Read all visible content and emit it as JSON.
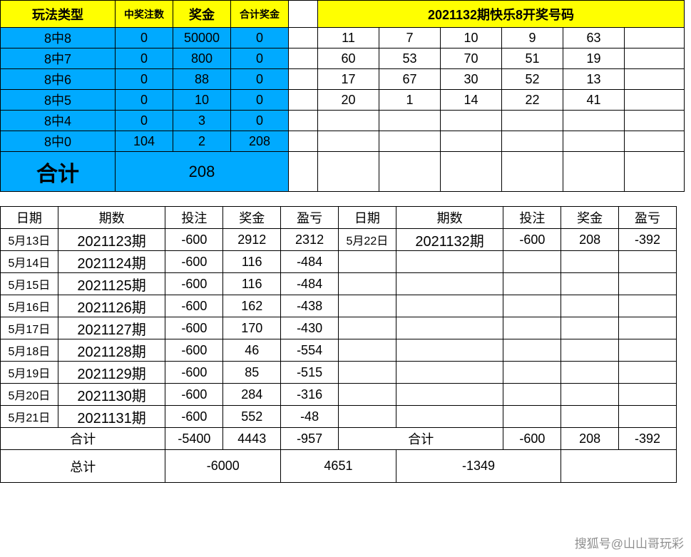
{
  "prize_table": {
    "headers": [
      "玩法类型",
      "中奖注数",
      "奖金",
      "合计奖金"
    ],
    "rows": [
      [
        "8中8",
        "0",
        "50000",
        "0"
      ],
      [
        "8中7",
        "0",
        "800",
        "0"
      ],
      [
        "8中6",
        "0",
        "88",
        "0"
      ],
      [
        "8中5",
        "0",
        "10",
        "0"
      ],
      [
        "8中4",
        "0",
        "3",
        "0"
      ],
      [
        "8中0",
        "104",
        "2",
        "208"
      ]
    ],
    "total_label": "合计",
    "total_value": "208"
  },
  "draw": {
    "title": "2021132期快乐8开奖号码",
    "grid": [
      [
        "11",
        "7",
        "10",
        "9",
        "63",
        ""
      ],
      [
        "60",
        "53",
        "70",
        "51",
        "19",
        ""
      ],
      [
        "17",
        "67",
        "30",
        "52",
        "13",
        ""
      ],
      [
        "20",
        "1",
        "14",
        "22",
        "41",
        ""
      ],
      [
        "",
        "",
        "",
        "",
        "",
        ""
      ],
      [
        "",
        "",
        "",
        "",
        "",
        ""
      ]
    ],
    "big_row": [
      "",
      "",
      "",
      "",
      "",
      ""
    ]
  },
  "daily": {
    "headers": [
      "日期",
      "期数",
      "投注",
      "奖金",
      "盈亏",
      "日期",
      "期数",
      "投注",
      "奖金",
      "盈亏"
    ],
    "rows": [
      [
        "5月13日",
        "2021123期",
        "-600",
        "2912",
        "2312",
        "5月22日",
        "2021132期",
        "-600",
        "208",
        "-392"
      ],
      [
        "5月14日",
        "2021124期",
        "-600",
        "116",
        "-484",
        "",
        "",
        "",
        "",
        ""
      ],
      [
        "5月15日",
        "2021125期",
        "-600",
        "116",
        "-484",
        "",
        "",
        "",
        "",
        ""
      ],
      [
        "5月16日",
        "2021126期",
        "-600",
        "162",
        "-438",
        "",
        "",
        "",
        "",
        ""
      ],
      [
        "5月17日",
        "2021127期",
        "-600",
        "170",
        "-430",
        "",
        "",
        "",
        "",
        ""
      ],
      [
        "5月18日",
        "2021128期",
        "-600",
        "46",
        "-554",
        "",
        "",
        "",
        "",
        ""
      ],
      [
        "5月19日",
        "2021129期",
        "-600",
        "85",
        "-515",
        "",
        "",
        "",
        "",
        ""
      ],
      [
        "5月20日",
        "2021130期",
        "-600",
        "284",
        "-316",
        "",
        "",
        "",
        "",
        ""
      ],
      [
        "5月21日",
        "2021131期",
        "-600",
        "552",
        "-48",
        "",
        "",
        "",
        "",
        ""
      ]
    ],
    "subtotal_left": {
      "label": "合计",
      "bet": "-5400",
      "prize": "4443",
      "pl": "-957"
    },
    "subtotal_right": {
      "label": "合计",
      "bet": "-600",
      "prize": "208",
      "pl": "-392"
    },
    "grand": {
      "label": "总计",
      "bet": "-6000",
      "prize": "4651",
      "pl": "-1349"
    }
  },
  "colors": {
    "yellow": "#ffff00",
    "blue": "#00aaff",
    "border": "#000000",
    "bg": "#ffffff"
  },
  "watermark": "搜狐号@山山哥玩彩"
}
